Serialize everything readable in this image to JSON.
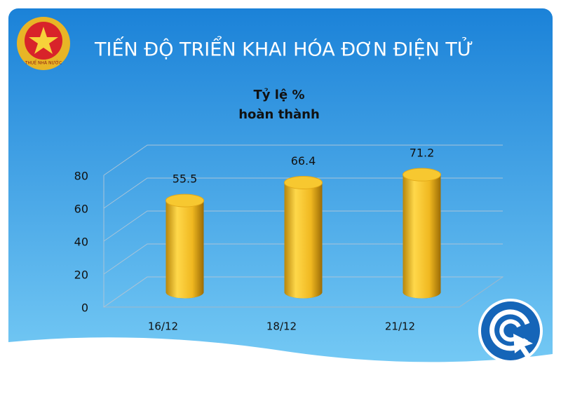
{
  "slide_title": "TIẾN ĐỘ TRIỂN KHAI HÓA ĐƠN ĐIỆN TỬ",
  "logo_text": "THUẾ NHÀ NƯỚC",
  "chart_data": {
    "type": "bar",
    "title": [
      "Tỷ lệ %",
      "hoàn thành"
    ],
    "categories": [
      "16/12",
      "18/12",
      "21/12"
    ],
    "values": [
      55.5,
      66.4,
      71.2
    ],
    "color": "#f2c12e",
    "ylim": [
      0,
      80
    ],
    "yticks": [
      0,
      20,
      40,
      60,
      80
    ],
    "grid": true
  }
}
